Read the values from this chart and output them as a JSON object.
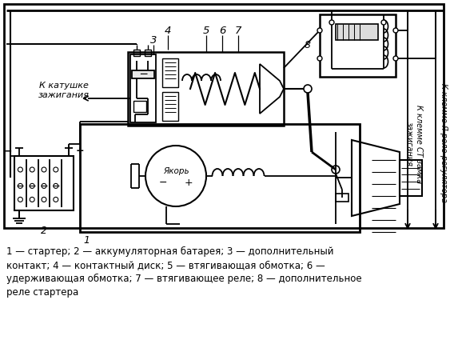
{
  "bg_color": "#ffffff",
  "lc": "#000000",
  "caption_line1": "1 — стартер; 2 — аккумуляторная батарея; 3 — дополнительный",
  "caption_line2": "контакт; 4 — контактный диск; 5 — втягивающая обмотка; 6 —",
  "caption_line3": "удерживающая обмотка; 7 — втягивающее реле; 8 — дополнительное",
  "caption_line4": "реле стартера",
  "label_ignition": "К катушке\nзажигания",
  "label_anchor": "Якорь",
  "label_ST": "К клемме СТ замка\nзажигания",
  "label_Ya": "К клемме Я реле-регулятора"
}
